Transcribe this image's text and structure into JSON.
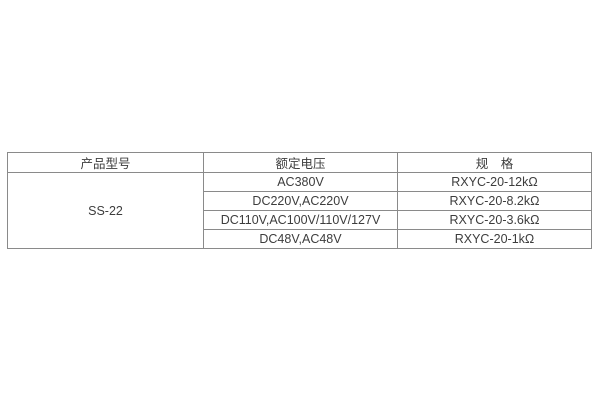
{
  "table": {
    "headers": [
      "产品型号",
      "额定电压",
      "规　格"
    ],
    "product_model": "SS-22",
    "rows": [
      {
        "voltage": "AC380V",
        "spec": "RXYC-20-12kΩ"
      },
      {
        "voltage": "DC220V,AC220V",
        "spec": "RXYC-20-8.2kΩ"
      },
      {
        "voltage": "DC110V,AC100V/110V/127V",
        "spec": "RXYC-20-3.6kΩ"
      },
      {
        "voltage": "DC48V,AC48V",
        "spec": "RXYC-20-1kΩ"
      }
    ],
    "border_color": "#8a8a8a",
    "text_color": "#3d3d3d",
    "background_color": "#ffffff"
  }
}
